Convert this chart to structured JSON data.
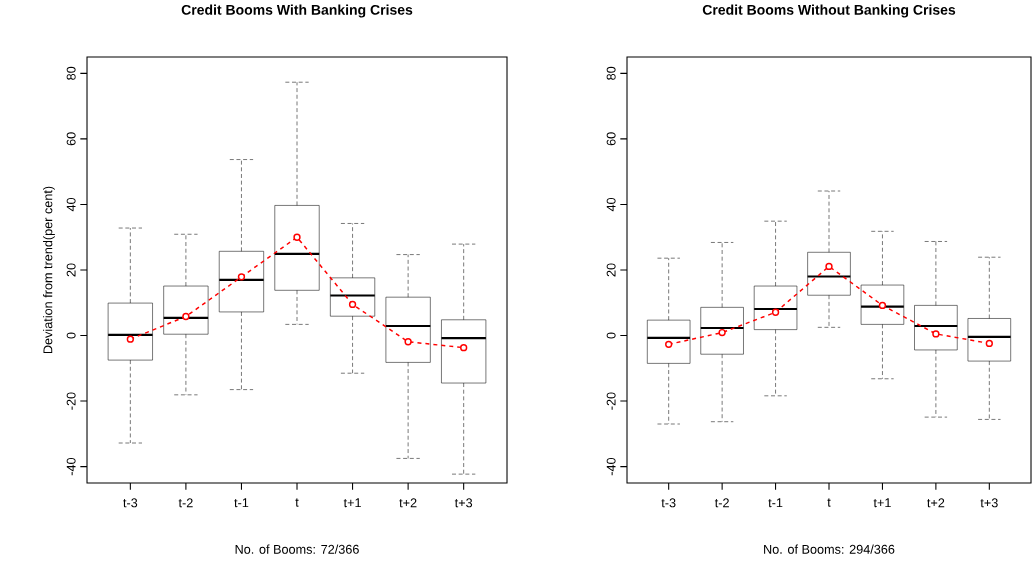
{
  "chart_data": [
    {
      "type": "box",
      "title": "Credit Booms With Banking Crises",
      "xlabel": "No. of Booms: 72/366",
      "ylabel": "Deviation from trend(per cent)",
      "categories": [
        "t-3",
        "t-2",
        "t-1",
        "t",
        "t+1",
        "t+2",
        "t+3"
      ],
      "ylim": [
        -45,
        85
      ],
      "yticks": [
        -40,
        -20,
        0,
        20,
        40,
        60,
        80
      ],
      "boxes": [
        {
          "low": -32.8,
          "q1": -7.5,
          "median": 0.2,
          "q3": 9.9,
          "high": 32.8
        },
        {
          "low": -18.1,
          "q1": 0.4,
          "median": 5.4,
          "q3": 15.1,
          "high": 30.9
        },
        {
          "low": -16.5,
          "q1": 7.2,
          "median": 17.0,
          "q3": 25.7,
          "high": 53.7
        },
        {
          "low": 3.4,
          "q1": 13.8,
          "median": 24.9,
          "q3": 39.7,
          "high": 77.3
        },
        {
          "low": -11.5,
          "q1": 5.9,
          "median": 12.2,
          "q3": 17.6,
          "high": 34.2
        },
        {
          "low": -37.5,
          "q1": -8.2,
          "median": 2.9,
          "q3": 11.7,
          "high": 24.7
        },
        {
          "low": -42.3,
          "q1": -14.5,
          "median": -0.8,
          "q3": 4.8,
          "high": 27.9
        }
      ],
      "series": [
        {
          "type": "line",
          "color": "#ff0000",
          "line_style": "dashed",
          "marker": "circle",
          "values": [
            -1.1,
            5.8,
            17.9,
            30.0,
            9.5,
            -1.9,
            -3.7
          ]
        }
      ]
    },
    {
      "type": "box",
      "title": "Credit Booms Without Banking Crises",
      "xlabel": "No. of Booms: 294/366",
      "categories": [
        "t-3",
        "t-2",
        "t-1",
        "t",
        "t+1",
        "t+2",
        "t+3"
      ],
      "ylim": [
        -45,
        85
      ],
      "yticks": [
        -40,
        -20,
        0,
        20,
        40,
        60,
        80
      ],
      "boxes": [
        {
          "low": -27.0,
          "q1": -8.5,
          "median": -0.7,
          "q3": 4.7,
          "high": 23.6
        },
        {
          "low": -26.3,
          "q1": -5.7,
          "median": 2.3,
          "q3": 8.6,
          "high": 28.4
        },
        {
          "low": -18.4,
          "q1": 1.8,
          "median": 8.1,
          "q3": 15.1,
          "high": 34.9
        },
        {
          "low": 2.5,
          "q1": 12.3,
          "median": 18.0,
          "q3": 25.4,
          "high": 44.1
        },
        {
          "low": -13.2,
          "q1": 3.4,
          "median": 8.8,
          "q3": 15.4,
          "high": 31.8
        },
        {
          "low": -24.9,
          "q1": -4.4,
          "median": 2.9,
          "q3": 9.2,
          "high": 28.7
        },
        {
          "low": -25.6,
          "q1": -7.8,
          "median": -0.4,
          "q3": 5.2,
          "high": 23.9
        }
      ],
      "series": [
        {
          "type": "line",
          "color": "#ff0000",
          "line_style": "dashed",
          "marker": "circle",
          "values": [
            -2.7,
            0.9,
            7.1,
            21.1,
            9.2,
            0.5,
            -2.4
          ]
        }
      ]
    }
  ]
}
